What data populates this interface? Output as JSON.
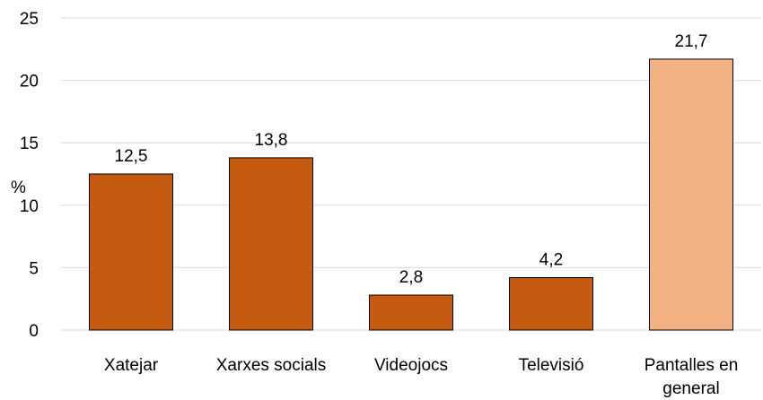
{
  "chart_data": {
    "type": "bar",
    "categories": [
      "Xatejar",
      "Xarxes socials",
      "Videojocs",
      "Televisió",
      "Pantalles en general"
    ],
    "values": [
      12.5,
      13.8,
      2.8,
      4.2,
      21.7
    ],
    "value_labels": [
      "12,5",
      "13,8",
      "2,8",
      "4,2",
      "21,7"
    ],
    "category_lines": [
      [
        "Xatejar"
      ],
      [
        "Xarxes socials"
      ],
      [
        "Videojocs"
      ],
      [
        "Televisió"
      ],
      [
        "Pantalles en",
        "general"
      ]
    ],
    "bar_colors": [
      "#c55a11",
      "#c55a11",
      "#c55a11",
      "#c55a11",
      "#f4b183"
    ],
    "ylabel": "%",
    "ylim": [
      0,
      25
    ],
    "yticks": [
      0,
      5,
      10,
      15,
      20,
      25
    ],
    "grid": true
  }
}
